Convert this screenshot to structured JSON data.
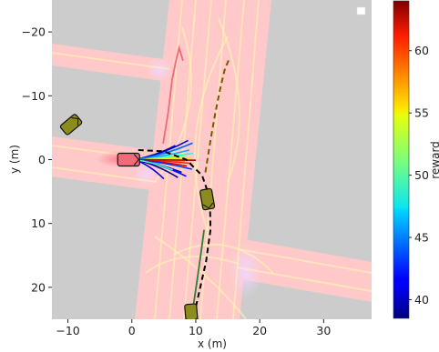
{
  "chart_data": {
    "type": "scatter",
    "xlabel": "x (m)",
    "ylabel": "y (m)",
    "xlim": [
      -12.5,
      37.5
    ],
    "ylim": [
      25,
      -25
    ],
    "y_inverted": true,
    "x_ticks": [
      -10,
      0,
      10,
      20,
      30
    ],
    "y_ticks": [
      -20,
      -10,
      0,
      10,
      20
    ],
    "x_tick_labels": [
      "−10",
      "0",
      "10",
      "20",
      "30"
    ],
    "y_tick_labels": [
      "−20",
      "−10",
      "0",
      "10",
      "20"
    ],
    "background": "#cccccc",
    "road_color": "#ffc9c9",
    "lane_color": "#fff7b0",
    "colorbar": {
      "label": "reward",
      "colormap": "jet",
      "range": [
        38.5,
        64
      ],
      "ticks": [
        40,
        45,
        50,
        55,
        60
      ],
      "tick_labels": [
        "40",
        "45",
        "50",
        "55",
        "60"
      ]
    },
    "ego_vehicle": {
      "x": -0.5,
      "y": 0,
      "heading_deg": 0,
      "color": "#f06a7a"
    },
    "other_vehicles": [
      {
        "x": -9.5,
        "y": -5.5,
        "heading_deg": -40,
        "color": "#8c8c1e"
      },
      {
        "x": 11.8,
        "y": 6.2,
        "heading_deg": 80,
        "color": "#8c8c1e"
      },
      {
        "x": 9.3,
        "y": 24.2,
        "heading_deg": 85,
        "color": "#8c8c1e"
      }
    ],
    "series": [
      {
        "role": "ego past path",
        "color": "#f06a7a",
        "style": "solid",
        "x": [
          4.9,
          5.3,
          5.7,
          6.0,
          6.3,
          6.8,
          7.4,
          8.0
        ],
        "y": [
          -2.5,
          -5,
          -7.5,
          -10,
          -12.5,
          -15,
          -17.5,
          -15.5
        ]
      },
      {
        "role": "predicted path",
        "color": "#7a5a00",
        "style": "dashed",
        "x": [
          11.5,
          12.3,
          13.0,
          13.8,
          14.5,
          15.3
        ],
        "y": [
          2,
          -3,
          -7,
          -11,
          -14,
          -16
        ]
      },
      {
        "role": "planned path",
        "color": "#000000",
        "style": "dashed",
        "x": [
          1,
          5,
          8.5,
          11,
          12.2,
          12.3,
          11.6,
          10.7,
          9.8
        ],
        "y": [
          -1.5,
          -1.3,
          0,
          2.5,
          6,
          11,
          16,
          20,
          24
        ]
      },
      {
        "role": "vehicle trail",
        "color": "#2e7d32",
        "style": "solid",
        "x": [
          9.6,
          10.2,
          10.9,
          11.3
        ],
        "y": [
          23,
          19,
          14,
          11
        ]
      }
    ],
    "sampled_trajectories": [
      {
        "end_x": 8.8,
        "end_y": -3.0,
        "reward": 41
      },
      {
        "end_x": 9.5,
        "end_y": -2.6,
        "reward": 44
      },
      {
        "end_x": 9.0,
        "end_y": -1.5,
        "reward": 46
      },
      {
        "end_x": 9.6,
        "end_y": -1.0,
        "reward": 49
      },
      {
        "end_x": 8.5,
        "end_y": -0.6,
        "reward": 52
      },
      {
        "end_x": 9.2,
        "end_y": -0.2,
        "reward": 55
      },
      {
        "end_x": 8.3,
        "end_y": 0.2,
        "reward": 58
      },
      {
        "end_x": 9.3,
        "end_y": 0.6,
        "reward": 60
      },
      {
        "end_x": 8.6,
        "end_y": 1.0,
        "reward": 62
      },
      {
        "end_x": 9.4,
        "end_y": 1.5,
        "reward": 43
      },
      {
        "end_x": 7.8,
        "end_y": 2.0,
        "reward": 40
      },
      {
        "end_x": 8.5,
        "end_y": 2.6,
        "reward": 42
      },
      {
        "end_x": 7.2,
        "end_y": 2.8,
        "reward": 39
      },
      {
        "end_x": 6.8,
        "end_y": -2.2,
        "reward": 40
      },
      {
        "end_x": 5.0,
        "end_y": 3.0,
        "reward": 41
      },
      {
        "end_x": 10.0,
        "end_y": 0.1,
        "reward": 63
      },
      {
        "end_x": 7.6,
        "end_y": -1.8,
        "reward": 45
      },
      {
        "end_x": 6.4,
        "end_y": 1.6,
        "reward": 50
      }
    ]
  }
}
